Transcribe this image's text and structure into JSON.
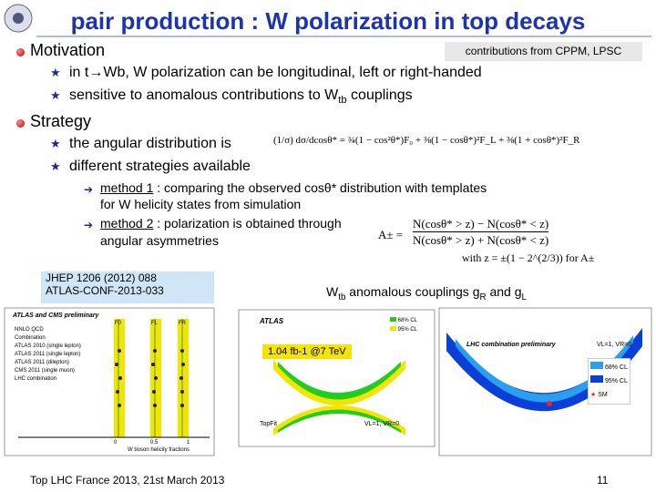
{
  "header": {
    "title": "pair production : W polarization in top decays"
  },
  "tag": "contributions from CPPM, LPSC",
  "motivation": {
    "heading": "Motivation",
    "item1": "in t→Wb, W polarization can be longitudinal, left or right-handed",
    "item2": {
      "before": "sensitive to anomalous contributions to W",
      "sub": "tb",
      "after": " couplings"
    }
  },
  "strategy": {
    "heading": "Strategy",
    "item1": "the angular distribution is",
    "formula1": "(1/σ) dσ/dcosθ* = ¾(1 − cos²θ*)F₀ + ⅜(1 − cosθ*)²F_L + ⅜(1 + cosθ*)²F_R",
    "item2": "different strategies available",
    "method1": {
      "name": "method 1",
      "text": " : comparing the observed cosθ* distribution with templates",
      "line2": "for W helicity states from simulation"
    },
    "method2": {
      "name": "method 2",
      "text": " : polarization is obtained through",
      "line2": "angular asymmetries"
    },
    "formula2": {
      "lhs": "A± =",
      "num": "N(cosθ* > z) − N(cosθ* < z)",
      "den": "N(cosθ* > z) + N(cosθ* < z)",
      "note": "with z = ±(1 − 2^(2/3)) for A±"
    }
  },
  "reference": {
    "line1": "JHEP 1206 (2012) 088",
    "line2": "ATLAS-CONF-2013-033"
  },
  "couplings": {
    "before": "W",
    "sub1": "tb",
    "mid": " anomalous couplings g",
    "sub2": "R",
    "and": " and g",
    "sub3": "L"
  },
  "plot_left": {
    "title": "ATLAS and CMS preliminary",
    "legend": [
      "NNLO QCD",
      "Combination",
      "ATLAS 2010 (single lepton)",
      "ATLAS 2011 (single lepton)",
      "ATLAS 2011 (dilepton)",
      "CMS 2011 (single muon)",
      "LHC combination"
    ],
    "columns": [
      "F0",
      "FL",
      "FR"
    ],
    "xlabel": "W boson helicity fractions",
    "xticks": [
      "0",
      "0.5",
      "1"
    ]
  },
  "plot_mid": {
    "title": "ATLAS",
    "legend": [
      "68% CL",
      "95% CL"
    ],
    "lumi": "1.04 fb-1 @7 TeV",
    "fit": "TopFit",
    "setting": "VL=1, VR=0"
  },
  "plot_right": {
    "title": "LHC combination preliminary",
    "legend": [
      "68% CL",
      "95% CL",
      "SM"
    ],
    "setting": "VL=1, VR=0"
  },
  "footer": {
    "event": "Top LHC France 2013, 21st March 2013",
    "page": "11"
  }
}
